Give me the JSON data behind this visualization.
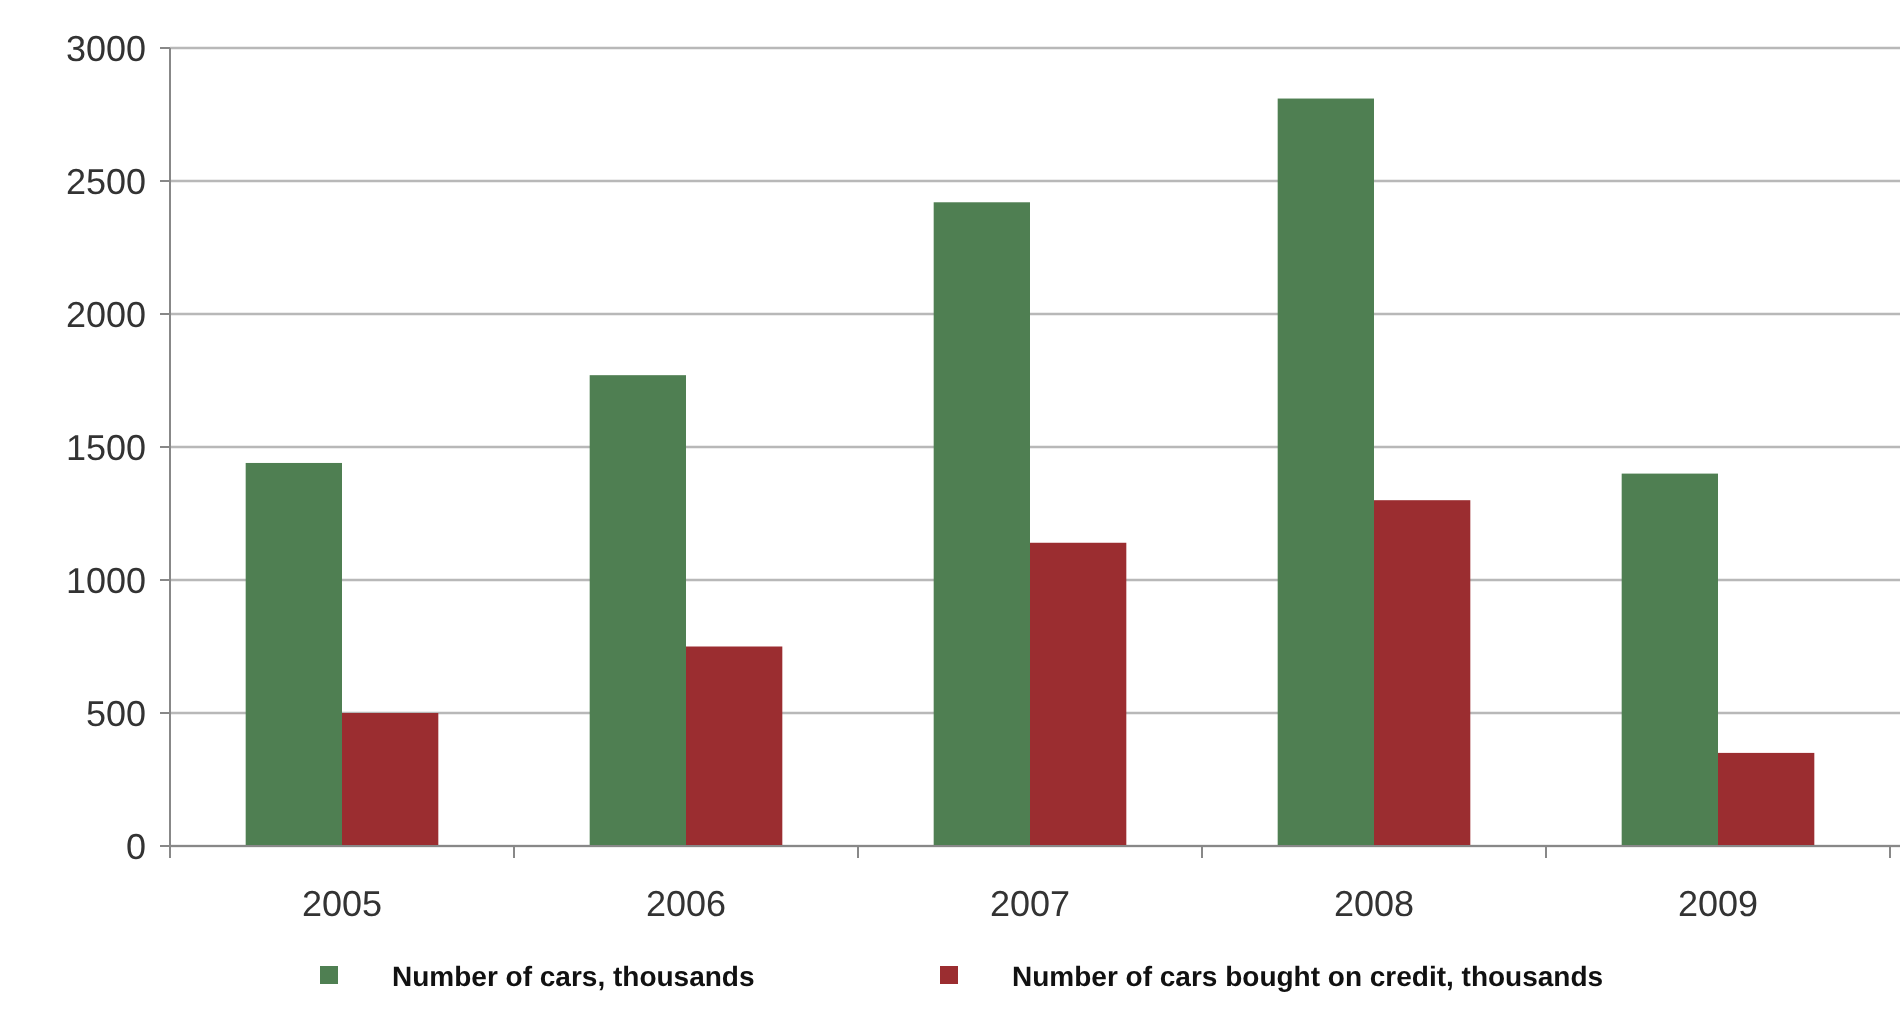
{
  "chart_data": {
    "type": "bar",
    "categories": [
      "2005",
      "2006",
      "2007",
      "2008",
      "2009"
    ],
    "series": [
      {
        "name": "Number of cars, thousands",
        "color": "#4f7f52",
        "values": [
          1440,
          1770,
          2420,
          2810,
          1400
        ]
      },
      {
        "name": "Number of cars bought on credit, thousands",
        "color": "#9b2d30",
        "values": [
          500,
          750,
          1140,
          1300,
          350
        ]
      }
    ],
    "ylim": [
      0,
      3000
    ],
    "yticks": [
      0,
      500,
      1000,
      1500,
      2000,
      2500,
      3000
    ],
    "grid": "y",
    "legend": "bottom"
  }
}
